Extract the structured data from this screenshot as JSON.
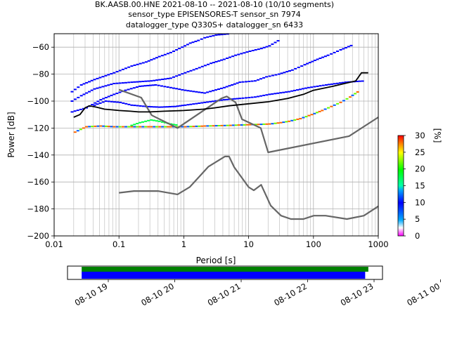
{
  "title": {
    "line1": "BK.AASB.00.HNE   2021-08-10 -- 2021-08-10  (10/10 segments)",
    "line2": "sensor_type EPISENSORES-T sensor_sn 7974",
    "line3": "datalogger_type Q330S+ datalogger_sn 6433"
  },
  "chart_data": {
    "type": "heatmap",
    "xlabel": "Period [s]",
    "ylabel": "Power [dB]",
    "x_scale": "log",
    "xlim": [
      0.01,
      1000
    ],
    "ylim": [
      -200,
      -50
    ],
    "x_ticks": [
      {
        "value": 0.01,
        "label": "0.01"
      },
      {
        "value": 0.1,
        "label": "0.1"
      },
      {
        "value": 1,
        "label": "1"
      },
      {
        "value": 10,
        "label": "10"
      },
      {
        "value": 100,
        "label": "100"
      },
      {
        "value": 1000,
        "label": "1000"
      }
    ],
    "y_ticks": [
      {
        "value": -60,
        "label": "−60"
      },
      {
        "value": -80,
        "label": "−80"
      },
      {
        "value": -100,
        "label": "−100"
      },
      {
        "value": -120,
        "label": "−120"
      },
      {
        "value": -140,
        "label": "−140"
      },
      {
        "value": -160,
        "label": "−160"
      },
      {
        "value": -180,
        "label": "−180"
      },
      {
        "value": -200,
        "label": "−200"
      }
    ],
    "grid": true,
    "colorbar": {
      "label": "[%]",
      "range": [
        0,
        30
      ],
      "ticks": [
        {
          "value": 0,
          "label": "0"
        },
        {
          "value": 5,
          "label": "5"
        },
        {
          "value": 10,
          "label": "10"
        },
        {
          "value": 15,
          "label": "15"
        },
        {
          "value": 20,
          "label": "20"
        },
        {
          "value": 25,
          "label": "25"
        },
        {
          "value": 30,
          "label": "30"
        }
      ]
    },
    "noise_model_high": {
      "x": [
        0.1,
        0.22,
        0.32,
        0.8,
        3.8,
        4.6,
        6.3,
        7.9,
        15.4,
        20,
        354.8,
        1000
      ],
      "y": [
        -91.5,
        -97.4,
        -110.5,
        -120,
        -98,
        -96.5,
        -101,
        -113.5,
        -120,
        -138,
        -126,
        -112
      ]
    },
    "noise_model_low": {
      "x": [
        0.1,
        0.17,
        0.4,
        0.8,
        1.24,
        2.4,
        4.3,
        5,
        6,
        10,
        12,
        15.6,
        21.9,
        31.6,
        45,
        70,
        101,
        154,
        328,
        600,
        1000
      ],
      "y": [
        -168,
        -166.7,
        -166.7,
        -169.2,
        -163.7,
        -148.6,
        -141.1,
        -141.1,
        -149,
        -163.8,
        -166.2,
        -162.1,
        -177.5,
        -185,
        -187.5,
        -187.5,
        -185,
        -185,
        -187.5,
        -185,
        -178
      ]
    },
    "median": {
      "x": [
        0.02,
        0.025,
        0.03,
        0.035,
        0.045,
        0.06,
        0.08,
        0.1,
        0.15,
        0.2,
        0.3,
        0.5,
        1,
        2,
        3,
        5,
        10,
        20,
        40,
        70,
        100,
        200,
        300,
        450,
        550,
        700
      ],
      "y": [
        -112,
        -110,
        -105,
        -103.5,
        -104.5,
        -106,
        -106.5,
        -107,
        -107.5,
        -108,
        -108,
        -107.5,
        -107,
        -106,
        -105,
        -103.5,
        -102,
        -100.5,
        -98,
        -95,
        -92,
        -89,
        -87,
        -85,
        -79,
        -79
      ]
    },
    "density_ridges": [
      {
        "x": [
          0.018,
          0.025,
          0.04,
          0.08,
          0.15,
          0.25,
          0.4,
          0.6,
          0.9,
          1.2,
          1.6,
          2,
          3,
          5
        ],
        "y": [
          -93,
          -88,
          -84,
          -79,
          -74,
          -71,
          -67,
          -64,
          -60,
          -57,
          -55,
          -53,
          -51,
          -50
        ],
        "pct": 10
      },
      {
        "x": [
          0.018,
          0.025,
          0.04,
          0.08,
          0.15,
          0.3,
          0.6,
          1,
          1.5,
          2.5,
          4,
          6,
          10,
          15,
          20,
          30
        ],
        "y": [
          -100,
          -96,
          -91,
          -87,
          -86,
          -85,
          -83,
          -79,
          -76,
          -72,
          -69,
          -66,
          -63,
          -61,
          -59,
          -54
        ],
        "pct": 10
      },
      {
        "x": [
          0.018,
          0.03,
          0.05,
          0.08,
          0.12,
          0.2,
          0.35,
          0.6,
          1,
          2,
          4,
          7,
          12,
          18,
          28,
          45,
          70,
          110,
          160,
          250,
          400
        ],
        "y": [
          -108,
          -105,
          -99,
          -95,
          -92,
          -89,
          -88,
          -90,
          -92,
          -94,
          -90,
          -86,
          -85,
          -82,
          -80,
          -77,
          -73,
          -69,
          -66,
          -62,
          -58
        ],
        "pct": 10
      },
      {
        "x": [
          0.04,
          0.06,
          0.1,
          0.15,
          0.25,
          0.4,
          0.7,
          1,
          2,
          4,
          7,
          12,
          20,
          40,
          80,
          150,
          300,
          600
        ],
        "y": [
          -103,
          -100,
          -101,
          -103,
          -104,
          -104.5,
          -104,
          -103,
          -101,
          -99,
          -98,
          -97,
          -95,
          -93,
          -90,
          -88,
          -86,
          -85
        ],
        "pct": 10
      },
      {
        "x": [
          0.02,
          0.03,
          0.05,
          0.08,
          0.15,
          0.3,
          0.6,
          1,
          2,
          5,
          10,
          20,
          30,
          40,
          60,
          90,
          130,
          180,
          250,
          350,
          500
        ],
        "y": [
          -123,
          -119,
          -118.5,
          -119,
          -119,
          -119,
          -119,
          -119,
          -118.5,
          -118,
          -117.5,
          -117,
          -116,
          -115,
          -113,
          -110,
          -107,
          -104,
          -101,
          -97,
          -92
        ],
        "pct": 25
      },
      {
        "x": [
          0.15,
          0.2,
          0.3,
          0.4,
          0.6,
          0.8
        ],
        "y": [
          -118,
          -116,
          -114,
          -115,
          -117,
          -118
        ],
        "pct": 18
      }
    ],
    "availability": {
      "time_ticks": [
        {
          "label": "08-10 19"
        },
        {
          "label": "08-10 20"
        },
        {
          "label": "08-10 21"
        },
        {
          "label": "08-10 22"
        },
        {
          "label": "08-10 23"
        },
        {
          "label": "08-11 00"
        }
      ],
      "data_bar_color": "#008000",
      "psd_bar_color": "#0000ff",
      "data_bar": {
        "start_frac": 0.045,
        "end_frac": 0.955
      },
      "psd_bar": {
        "start_frac": 0.045,
        "end_frac": 0.945
      }
    }
  }
}
